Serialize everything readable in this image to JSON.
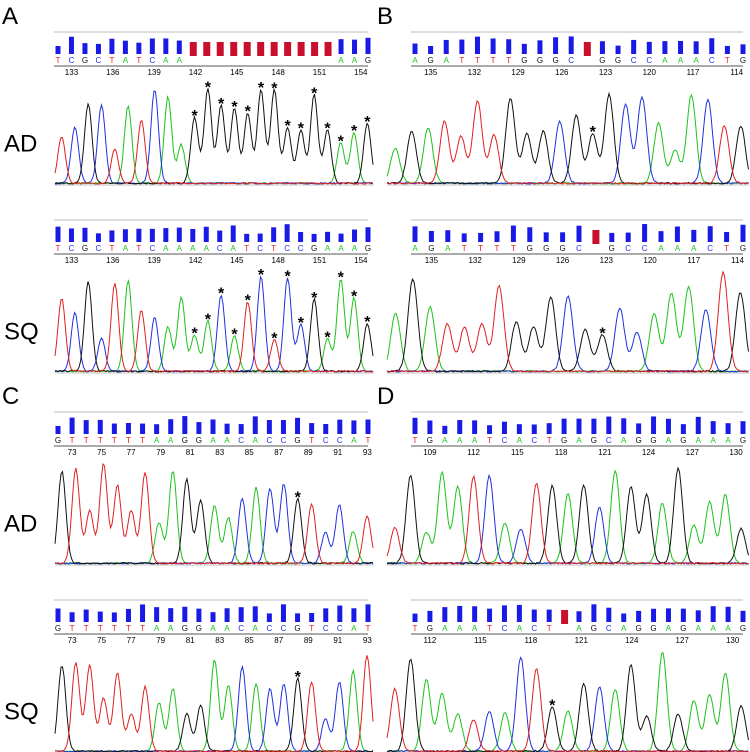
{
  "asterisk": "*",
  "panels": [
    {
      "label": "A",
      "tracks": [
        {
          "row_label": "AD",
          "bases": [
            "T",
            "C",
            "G",
            "C",
            "T",
            "A",
            "T",
            "C",
            "A",
            "A",
            null,
            null,
            null,
            null,
            null,
            null,
            null,
            null,
            null,
            null,
            null,
            "A",
            "A",
            "G"
          ],
          "positions": [
            133,
            136,
            139,
            142,
            145,
            148,
            151,
            154
          ]
        },
        {
          "row_label": "SQ",
          "bases": [
            "T",
            "C",
            "G",
            "C",
            "T",
            "A",
            "T",
            "C",
            "A",
            "A",
            "A",
            "A",
            "C",
            "A",
            "T",
            "C",
            "T",
            "C",
            "C",
            "G",
            "A",
            "A",
            "A",
            "G"
          ],
          "positions": [
            133,
            136,
            139,
            142,
            145,
            148,
            151,
            154
          ]
        }
      ]
    },
    {
      "label": "B",
      "tracks": [
        {
          "bases": [
            "A",
            "G",
            "A",
            "T",
            "T",
            "T",
            "T",
            "G",
            "G",
            "G",
            "C",
            null,
            "G",
            "G",
            "C",
            "C",
            "A",
            "A",
            "A",
            "C",
            "T",
            "G"
          ],
          "positions": [
            135,
            132,
            129,
            126,
            123,
            120,
            117,
            114
          ]
        },
        {
          "bases": [
            "A",
            "G",
            "A",
            "T",
            "T",
            "T",
            "T",
            "G",
            "G",
            "G",
            "C",
            null,
            "G",
            "C",
            "C",
            "A",
            "A",
            "A",
            "C",
            "T",
            "G"
          ],
          "positions": [
            135,
            132,
            129,
            126,
            123,
            120,
            117,
            114
          ]
        }
      ]
    },
    {
      "label": "C",
      "tracks": [
        {
          "row_label": "AD",
          "bases": [
            "G",
            "T",
            "T",
            "T",
            "T",
            "T",
            "T",
            "A",
            "A",
            "G",
            "G",
            "A",
            "A",
            "C",
            "A",
            "C",
            "C",
            "G",
            "T",
            "C",
            "C",
            "A",
            "T"
          ],
          "positions": [
            73,
            75,
            77,
            79,
            81,
            83,
            85,
            87,
            89,
            91,
            93
          ]
        },
        {
          "row_label": "SQ",
          "bases": [
            "G",
            "T",
            "T",
            "T",
            "T",
            "T",
            "T",
            "A",
            "A",
            "G",
            "G",
            "A",
            "A",
            "C",
            "A",
            "C",
            "C",
            "G",
            "T",
            "C",
            "C",
            "A",
            "T"
          ],
          "positions": [
            73,
            75,
            77,
            79,
            81,
            83,
            85,
            87,
            89,
            91,
            93
          ]
        }
      ]
    },
    {
      "label": "D",
      "tracks": [
        {
          "bases": [
            "T",
            "G",
            "A",
            "A",
            "A",
            "T",
            "C",
            "A",
            "C",
            "T",
            "G",
            "A",
            "G",
            "C",
            "A",
            "G",
            "G",
            "A",
            "G",
            "A",
            "A",
            "A",
            "G"
          ],
          "positions": [
            109,
            112,
            115,
            118,
            121,
            124,
            127,
            130
          ]
        },
        {
          "bases": [
            "T",
            "G",
            "A",
            "A",
            "A",
            "T",
            "C",
            "A",
            "C",
            "T",
            null,
            "A",
            "G",
            "C",
            "A",
            "G",
            "G",
            "A",
            "G",
            "A",
            "A",
            "A",
            "G"
          ],
          "positions": [
            112,
            115,
            118,
            121,
            124,
            127,
            130
          ]
        }
      ]
    }
  ]
}
